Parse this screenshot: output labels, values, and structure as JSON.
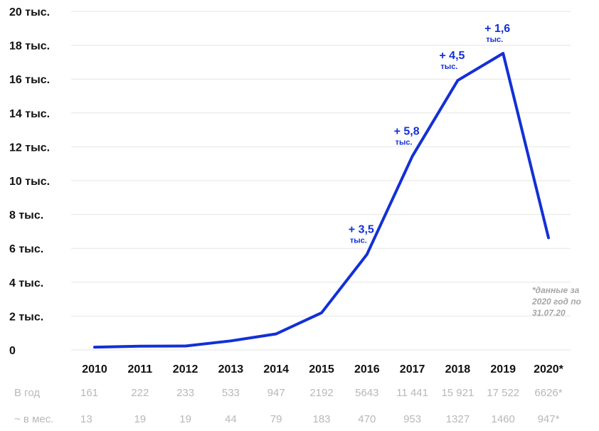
{
  "chart_data": {
    "type": "line",
    "title": "",
    "xlabel": "",
    "ylabel": "",
    "x": [
      "2010",
      "2011",
      "2012",
      "2013",
      "2014",
      "2015",
      "2016",
      "2017",
      "2018",
      "2019",
      "2020*"
    ],
    "y_tick_values": [
      0,
      2000,
      4000,
      6000,
      8000,
      10000,
      12000,
      14000,
      16000,
      18000,
      20000
    ],
    "y_tick_labels": [
      "0",
      "2 тыс.",
      "4 тыс.",
      "6 тыс.",
      "8 тыс.",
      "10 тыс.",
      "12 тыс.",
      "14 тыс.",
      "16 тыс.",
      "18 тыс.",
      "20 тыс."
    ],
    "ylim": [
      0,
      20000
    ],
    "grid": true,
    "series": [
      {
        "name": "",
        "values": [
          161,
          222,
          233,
          533,
          947,
          2192,
          5643,
          11441,
          15921,
          17522,
          6626
        ]
      }
    ],
    "annotations": [
      {
        "index": 6,
        "value": "+ 3,5",
        "unit": "тыс."
      },
      {
        "index": 7,
        "value": "+ 5,8",
        "unit": "тыс."
      },
      {
        "index": 8,
        "value": "+ 4,5",
        "unit": "тыс."
      },
      {
        "index": 9,
        "value": "+ 1,6",
        "unit": "тыс."
      }
    ],
    "note_lines": [
      "*данные за",
      "2020 год по",
      "31.07.20"
    ],
    "table": {
      "rows": [
        {
          "label": "В год",
          "values": [
            "161",
            "222",
            "233",
            "533",
            "947",
            "2192",
            "5643",
            "11 441",
            "15 921",
            "17 522",
            "6626*"
          ]
        },
        {
          "label": "~ в мес.",
          "values": [
            "13",
            "19",
            "19",
            "44",
            "79",
            "183",
            "470",
            "953",
            "1327",
            "1460",
            "947*"
          ]
        }
      ]
    },
    "colors": {
      "line": "#1230d6",
      "grid": "#e6e6e6",
      "table_text": "#b8b8b8"
    }
  }
}
